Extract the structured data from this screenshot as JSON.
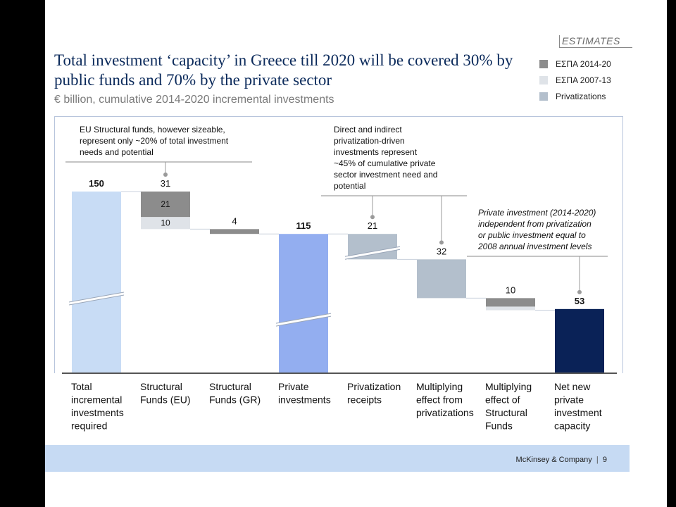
{
  "footer": {
    "company": "McKinsey & Company",
    "page": "9"
  },
  "chart_data": {
    "type": "waterfall",
    "title": "Total investment ‘capacity’ in Greece till 2020 will be covered 30% by public funds and 70% by the private sector",
    "subtitle": "€ billion, cumulative 2014-2020 incremental investments",
    "estimates_label": "ESTIMATES",
    "legend": [
      {
        "name": "ΕΣΠΑ 2014-20",
        "color": "#8c8c8c"
      },
      {
        "name": "ΕΣΠΑ 2007-13",
        "color": "#dfe3e8"
      },
      {
        "name": "Privatizations",
        "color": "#b3bfcc"
      }
    ],
    "colors": {
      "total": "#c8dcf5",
      "private": "#93aef0",
      "net": "#0a2257",
      "espa_2014_20": "#8c8c8c",
      "espa_2007_13": "#dfe3e8",
      "privatizations": "#b3bfcc",
      "title": "#0b2a5b"
    },
    "ylim": [
      0,
      150
    ],
    "categories": [
      "Total incremental investments required",
      "Structural Funds (EU)",
      "Structural Funds (GR)",
      "Private investments",
      "Privatization receipts",
      "Multiplying effect from privatizations",
      "Multiplying effect of Structural Funds",
      "Net new private investment capacity"
    ],
    "category_lines": [
      [
        "Total",
        "incremental",
        "investments",
        "required"
      ],
      [
        "Structural",
        "Funds (EU)"
      ],
      [
        "Structural",
        "Funds (GR)"
      ],
      [
        "Private",
        "investments"
      ],
      [
        "Privatization",
        "receipts"
      ],
      [
        "Multiplying",
        "effect from",
        "privatizations"
      ],
      [
        "Multiplying",
        "effect of",
        "Structural",
        "Funds"
      ],
      [
        "Net new",
        "private",
        "investment",
        "capacity"
      ]
    ],
    "bars": [
      {
        "kind": "total",
        "value": 150,
        "label": "150",
        "bold": true,
        "axis_break": true
      },
      {
        "kind": "decrease",
        "value": 31,
        "label": "31",
        "segments": [
          {
            "series": "ΕΣΠΑ 2007-13",
            "value": 10,
            "label": "10"
          },
          {
            "series": "ΕΣΠΑ 2014-20",
            "value": 21,
            "label": "21"
          }
        ]
      },
      {
        "kind": "decrease",
        "value": 4,
        "label": "4",
        "segments": [
          {
            "series": "ΕΣΠΑ 2014-20",
            "value": 4
          }
        ]
      },
      {
        "kind": "subtotal",
        "value": 115,
        "label": "115",
        "bold": true,
        "axis_break": true
      },
      {
        "kind": "decrease",
        "value": 21,
        "label": "21",
        "axis_break": true,
        "segments": [
          {
            "series": "Privatizations",
            "value": 21
          }
        ]
      },
      {
        "kind": "decrease",
        "value": 32,
        "label": "32",
        "segments": [
          {
            "series": "Privatizations",
            "value": 32
          }
        ]
      },
      {
        "kind": "decrease",
        "value": 10,
        "label": "10",
        "segments": [
          {
            "series": "ΕΣΠΑ 2007-13",
            "value": 3
          },
          {
            "series": "ΕΣΠΑ 2014-20",
            "value": 7
          }
        ]
      },
      {
        "kind": "total",
        "value": 53,
        "label": "53",
        "bold": true
      }
    ],
    "annotations": [
      {
        "lines": [
          "EU Structural funds, however sizeable,",
          "represent only ~20% of total investment",
          "needs and potential"
        ],
        "italic": false,
        "points_to": [
          1
        ]
      },
      {
        "lines": [
          "Direct and indirect",
          "privatization-driven",
          "investments represent",
          "~45% of cumulative private",
          "sector investment need and",
          "potential"
        ],
        "italic": false,
        "points_to": [
          4,
          5
        ]
      },
      {
        "lines": [
          "Private investment (2014-2020)",
          "independent from privatization",
          "or public investment equal to",
          "2008 annual investment levels"
        ],
        "italic": true,
        "points_to": [
          7
        ]
      }
    ]
  }
}
